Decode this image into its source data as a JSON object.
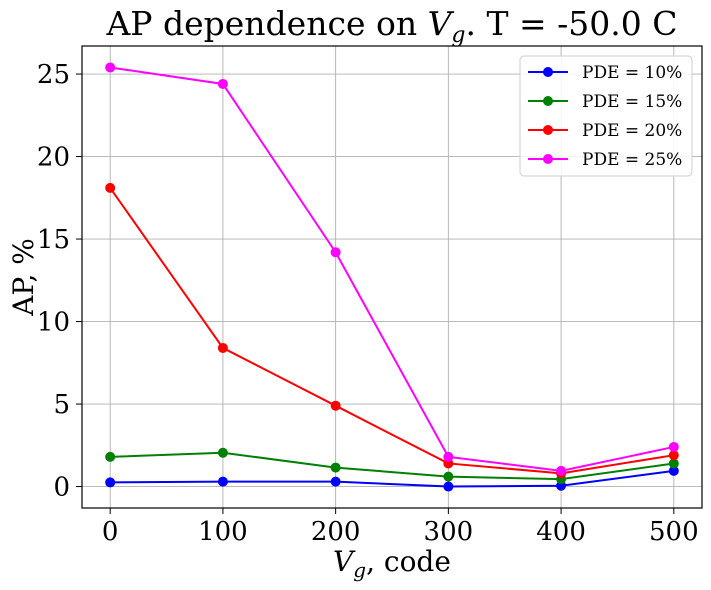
{
  "chart_data": {
    "type": "line",
    "title": "AP dependence on V_g. T = -50.0 C",
    "title_parts": {
      "pre": "AP dependence on ",
      "var": "V",
      "sub": "g",
      "post": ". T = -50.0 C"
    },
    "xlabel": "V_g, code",
    "xlabel_parts": {
      "var": "V",
      "sub": "g",
      "post": ", code"
    },
    "ylabel": "AP, %",
    "x": [
      0,
      100,
      200,
      300,
      400,
      500
    ],
    "xlim": [
      -25,
      525
    ],
    "ylim": [
      -1.3,
      26.7
    ],
    "xticks": [
      0,
      100,
      200,
      300,
      400,
      500
    ],
    "yticks": [
      0,
      5,
      10,
      15,
      20,
      25
    ],
    "grid": true,
    "legend_position": "top-right",
    "series": [
      {
        "name": "PDE = 10%",
        "color": "#0000ff",
        "values": [
          0.25,
          0.3,
          0.3,
          0.0,
          0.05,
          0.95
        ]
      },
      {
        "name": "PDE = 15%",
        "color": "#008000",
        "values": [
          1.8,
          2.05,
          1.15,
          0.6,
          0.45,
          1.4
        ]
      },
      {
        "name": "PDE = 20%",
        "color": "#ff0000",
        "values": [
          18.1,
          8.4,
          4.9,
          1.4,
          0.8,
          1.9
        ]
      },
      {
        "name": "PDE = 25%",
        "color": "#ff00ff",
        "values": [
          25.4,
          24.4,
          14.2,
          1.8,
          0.95,
          2.4
        ]
      }
    ]
  }
}
